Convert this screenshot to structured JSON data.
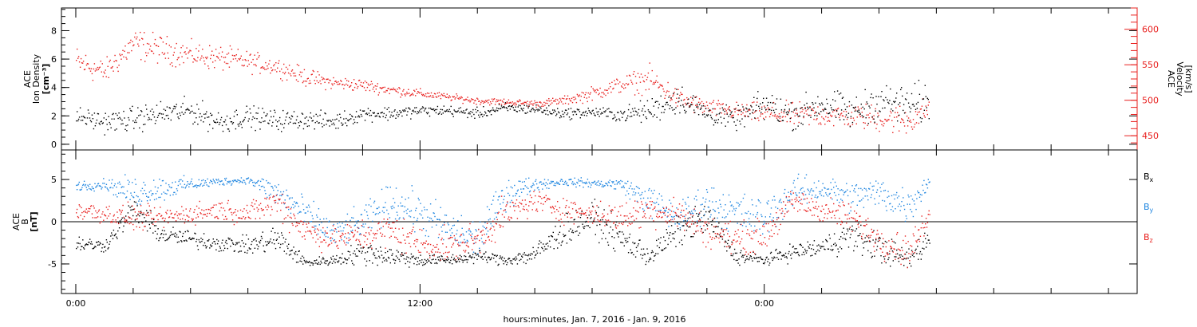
{
  "colors": {
    "black": "#000000",
    "red": "#e8201e",
    "blue": "#1f86e0"
  },
  "chart_data": [
    {
      "type": "scatter",
      "title": "",
      "ylabel_left": [
        "ACE",
        "Ion Density",
        "[cm⁻³]"
      ],
      "ylabel_right": [
        "ACE",
        "Velocity",
        "[km/s]"
      ],
      "y_left_ticks": [
        "0",
        "2",
        "4",
        "6",
        "8"
      ],
      "y_left_lim": [
        -0.4,
        9.6
      ],
      "y_right_ticks": [
        "450",
        "500",
        "550",
        "600"
      ],
      "y_right_lim": [
        430,
        630
      ],
      "x_hours_range": [
        -1,
        74
      ],
      "series": [
        {
          "axis": "left",
          "color": "#000000",
          "x": [
            0,
            2,
            4,
            6,
            8,
            10,
            12,
            14,
            16,
            18,
            20,
            22,
            24,
            26,
            28,
            30,
            32,
            34,
            36,
            38,
            40,
            42,
            44,
            46,
            48,
            50,
            52,
            54,
            56,
            58,
            59.5
          ],
          "y": [
            2.0,
            1.6,
            1.8,
            2.2,
            2.4,
            1.6,
            2.0,
            1.7,
            1.8,
            1.6,
            2.2,
            2.2,
            2.4,
            2.4,
            2.2,
            2.6,
            2.5,
            2.2,
            2.3,
            2.1,
            2.4,
            3.3,
            2.2,
            1.8,
            2.8,
            2.1,
            2.9,
            2.2,
            3.1,
            2.7,
            3.0
          ],
          "spread": [
            0.5,
            0.6,
            0.7,
            0.7,
            0.7,
            0.7,
            0.6,
            0.6,
            0.5,
            0.5,
            0.4,
            0.4,
            0.3,
            0.3,
            0.3,
            0.3,
            0.3,
            0.3,
            0.3,
            0.4,
            0.7,
            0.9,
            0.6,
            0.6,
            0.9,
            0.8,
            1.0,
            0.9,
            1.0,
            1.2,
            1.2
          ]
        },
        {
          "axis": "right",
          "color": "#e8201e",
          "x": [
            0,
            2,
            4,
            6,
            8,
            10,
            12,
            14,
            16,
            18,
            20,
            22,
            24,
            26,
            28,
            30,
            32,
            34,
            36,
            38,
            40,
            42,
            44,
            46,
            48,
            50,
            52,
            54,
            56,
            58,
            59.5
          ],
          "y": [
            555,
            540,
            580,
            572,
            565,
            560,
            555,
            548,
            533,
            525,
            522,
            515,
            510,
            505,
            500,
            498,
            496,
            500,
            510,
            523,
            530,
            502,
            490,
            485,
            482,
            480,
            480,
            478,
            476,
            472,
            490
          ],
          "spread": [
            18,
            14,
            18,
            16,
            14,
            14,
            12,
            10,
            10,
            8,
            7,
            6,
            5,
            4,
            4,
            4,
            4,
            5,
            8,
            10,
            15,
            12,
            10,
            10,
            12,
            14,
            14,
            14,
            16,
            18,
            14
          ]
        }
      ]
    },
    {
      "type": "scatter",
      "title": "",
      "ylabel_left": [
        "ACE",
        "B",
        "[nT]"
      ],
      "y_ticks": [
        "-5",
        "0",
        "5"
      ],
      "y_lim": [
        -8.5,
        8.5
      ],
      "x_hours_range": [
        -1,
        74
      ],
      "x_tick_labels": [
        {
          "hour": 0,
          "label": "0:00"
        },
        {
          "hour": 24,
          "label": "12:00"
        },
        {
          "hour": 48,
          "label": "0:00"
        }
      ],
      "x_tick_hours": [
        0,
        4,
        8,
        12,
        16,
        20,
        24,
        28,
        32,
        36,
        40,
        44,
        48,
        52,
        56,
        60,
        64,
        68,
        72
      ],
      "xlabel": "hours:minutes, Jan.  7, 2016 - Jan.  9, 2016",
      "legend": [
        "Bx",
        "By",
        "Bz"
      ],
      "legend_position": "right",
      "series": [
        {
          "name": "Bx",
          "color": "#000000",
          "x": [
            0,
            2,
            4,
            6,
            8,
            10,
            12,
            14,
            16,
            18,
            20,
            22,
            24,
            26,
            28,
            30,
            32,
            34,
            36,
            38,
            40,
            42,
            44,
            46,
            48,
            50,
            52,
            54,
            56,
            58,
            59.5
          ],
          "y": [
            -2.5,
            -2.8,
            1.5,
            -1.5,
            -2.0,
            -2.5,
            -2.8,
            -2.0,
            -4.8,
            -4.5,
            -3.5,
            -4.0,
            -4.5,
            -4.5,
            -4.0,
            -4.5,
            -3.8,
            -1.0,
            0.5,
            -2.0,
            -4.0,
            -1.0,
            0.5,
            -4.0,
            -4.5,
            -3.5,
            -3.0,
            -1.5,
            -3.0,
            -4.5,
            -2.0
          ],
          "spread": [
            0.8,
            0.6,
            1.2,
            1.0,
            0.8,
            0.8,
            0.8,
            1.5,
            0.4,
            0.5,
            1.2,
            1.0,
            0.6,
            0.5,
            0.6,
            0.5,
            1.0,
            1.5,
            1.5,
            1.5,
            1.0,
            1.5,
            1.5,
            0.8,
            0.5,
            0.8,
            1.0,
            1.5,
            1.5,
            1.0,
            1.5
          ]
        },
        {
          "name": "By",
          "color": "#1f86e0",
          "x": [
            0,
            2,
            4,
            6,
            8,
            10,
            12,
            14,
            16,
            18,
            20,
            22,
            24,
            26,
            28,
            30,
            32,
            34,
            36,
            38,
            40,
            42,
            44,
            46,
            48,
            50,
            52,
            54,
            56,
            58,
            59.5
          ],
          "y": [
            4.3,
            4.5,
            3.5,
            4.0,
            4.5,
            4.8,
            5.0,
            3.5,
            1.0,
            -1.5,
            0.0,
            2.5,
            1.0,
            -1.0,
            -2.0,
            3.5,
            4.5,
            4.8,
            4.6,
            4.5,
            2.5,
            0.5,
            2.5,
            1.0,
            0.5,
            3.5,
            4.0,
            3.0,
            3.5,
            2.0,
            4.8
          ],
          "spread": [
            0.5,
            0.5,
            1.5,
            1.2,
            0.6,
            0.4,
            0.3,
            1.5,
            1.5,
            1.5,
            1.5,
            1.8,
            2.0,
            2.0,
            1.8,
            1.5,
            0.6,
            0.4,
            0.4,
            0.6,
            1.5,
            1.5,
            1.8,
            2.0,
            2.0,
            1.5,
            1.2,
            1.5,
            1.5,
            2.0,
            0.5
          ]
        },
        {
          "name": "Bz",
          "color": "#e8201e",
          "x": [
            0,
            2,
            4,
            6,
            8,
            10,
            12,
            14,
            16,
            18,
            20,
            22,
            24,
            26,
            28,
            30,
            32,
            34,
            36,
            38,
            40,
            42,
            44,
            46,
            48,
            50,
            52,
            54,
            56,
            58,
            59.5
          ],
          "y": [
            1.5,
            1.0,
            0.5,
            0.5,
            1.0,
            1.5,
            1.0,
            2.5,
            -1.0,
            -2.0,
            -1.5,
            -1.0,
            -2.5,
            -3.0,
            -2.0,
            1.0,
            2.5,
            1.5,
            1.0,
            0.5,
            1.5,
            1.0,
            -1.0,
            -2.0,
            -1.5,
            2.5,
            1.5,
            0.5,
            -2.0,
            -3.5,
            0.5
          ],
          "spread": [
            1.0,
            1.0,
            1.2,
            1.0,
            1.0,
            1.0,
            1.0,
            1.5,
            1.5,
            1.2,
            1.5,
            1.8,
            1.5,
            1.5,
            1.5,
            1.5,
            1.2,
            1.2,
            1.0,
            1.5,
            1.5,
            1.5,
            1.5,
            1.5,
            1.5,
            1.2,
            1.2,
            1.5,
            1.5,
            1.5,
            1.2
          ]
        }
      ]
    }
  ]
}
